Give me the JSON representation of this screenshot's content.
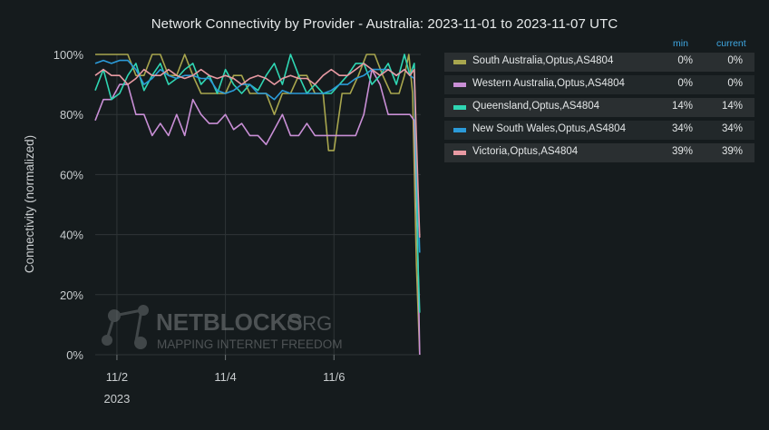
{
  "chart_data": {
    "type": "line",
    "title": "Network Connectivity by Provider - Australia: 2023-11-01 to 2023-11-07 UTC",
    "xlabel": "",
    "ylabel": "Connectivity (normalized)",
    "ylim": [
      0,
      100
    ],
    "xlim_days": [
      1.6,
      7.6
    ],
    "y_ticks": [
      {
        "value": 0,
        "label": "0%"
      },
      {
        "value": 20,
        "label": "20%"
      },
      {
        "value": 40,
        "label": "40%"
      },
      {
        "value": 60,
        "label": "60%"
      },
      {
        "value": 80,
        "label": "80%"
      },
      {
        "value": 100,
        "label": "100%"
      }
    ],
    "x_ticks": [
      {
        "value": 2,
        "label": "11/2"
      },
      {
        "value": 4,
        "label": "11/4"
      },
      {
        "value": 6,
        "label": "11/6"
      }
    ],
    "x_year_label": "2023",
    "grid": true,
    "legend_position": "right",
    "legend_columns": [
      "min",
      "current"
    ],
    "series": [
      {
        "name": "South Australia,Optus,AS4804",
        "color": "#a8a64e",
        "min": "0%",
        "current": "0%",
        "x": [
          1.6,
          1.75,
          1.9,
          2.05,
          2.2,
          2.35,
          2.5,
          2.65,
          2.8,
          2.95,
          3.1,
          3.25,
          3.4,
          3.55,
          3.7,
          3.85,
          4.0,
          4.15,
          4.3,
          4.45,
          4.6,
          4.75,
          4.9,
          5.05,
          5.2,
          5.35,
          5.5,
          5.65,
          5.8,
          5.9,
          6.0,
          6.15,
          6.3,
          6.45,
          6.6,
          6.75,
          6.9,
          7.05,
          7.2,
          7.3,
          7.38,
          7.45,
          7.52,
          7.58
        ],
        "y": [
          100,
          100,
          100,
          100,
          100,
          93,
          93,
          100,
          100,
          93,
          93,
          100,
          93,
          87,
          87,
          87,
          87,
          93,
          93,
          87,
          87,
          87,
          80,
          87,
          87,
          93,
          93,
          87,
          87,
          68,
          68,
          87,
          87,
          93,
          100,
          100,
          93,
          87,
          87,
          93,
          100,
          87,
          30,
          0
        ]
      },
      {
        "name": "Western Australia,Optus,AS4804",
        "color": "#c98fd6",
        "min": "0%",
        "current": "0%",
        "x": [
          1.6,
          1.75,
          1.9,
          2.05,
          2.2,
          2.35,
          2.5,
          2.65,
          2.8,
          2.95,
          3.1,
          3.25,
          3.4,
          3.55,
          3.7,
          3.85,
          4.0,
          4.15,
          4.3,
          4.45,
          4.6,
          4.75,
          4.9,
          5.05,
          5.2,
          5.35,
          5.5,
          5.65,
          5.8,
          5.95,
          6.1,
          6.25,
          6.4,
          6.55,
          6.7,
          6.85,
          7.0,
          7.15,
          7.3,
          7.4,
          7.48,
          7.55,
          7.58
        ],
        "y": [
          78,
          85,
          85,
          90,
          90,
          80,
          80,
          73,
          77,
          73,
          80,
          73,
          85,
          80,
          77,
          77,
          80,
          75,
          77,
          73,
          73,
          70,
          75,
          80,
          73,
          73,
          77,
          73,
          73,
          73,
          73,
          73,
          73,
          80,
          95,
          90,
          80,
          80,
          80,
          80,
          78,
          30,
          0
        ]
      },
      {
        "name": "Queensland,Optus,AS4804",
        "color": "#2fd6b3",
        "min": "14%",
        "current": "14%",
        "x": [
          1.6,
          1.75,
          1.9,
          2.05,
          2.2,
          2.35,
          2.5,
          2.65,
          2.8,
          2.95,
          3.1,
          3.25,
          3.4,
          3.55,
          3.7,
          3.85,
          4.0,
          4.15,
          4.3,
          4.45,
          4.6,
          4.75,
          4.9,
          5.05,
          5.2,
          5.35,
          5.5,
          5.65,
          5.8,
          5.95,
          6.1,
          6.25,
          6.4,
          6.55,
          6.7,
          6.85,
          7.0,
          7.15,
          7.3,
          7.4,
          7.48,
          7.55,
          7.58
        ],
        "y": [
          88,
          95,
          85,
          87,
          93,
          97,
          88,
          93,
          97,
          90,
          92,
          95,
          97,
          90,
          93,
          87,
          95,
          90,
          87,
          90,
          88,
          93,
          97,
          90,
          100,
          93,
          87,
          90,
          87,
          87,
          90,
          93,
          97,
          97,
          90,
          93,
          97,
          90,
          100,
          93,
          97,
          30,
          14
        ]
      },
      {
        "name": "New South Wales,Optus,AS4804",
        "color": "#2b9ad8",
        "min": "34%",
        "current": "34%",
        "x": [
          1.6,
          1.75,
          1.9,
          2.05,
          2.2,
          2.35,
          2.5,
          2.65,
          2.8,
          2.95,
          3.1,
          3.25,
          3.4,
          3.55,
          3.7,
          3.85,
          4.0,
          4.15,
          4.3,
          4.45,
          4.6,
          4.75,
          4.9,
          5.05,
          5.2,
          5.35,
          5.5,
          5.65,
          5.8,
          5.95,
          6.1,
          6.25,
          6.4,
          6.55,
          6.7,
          6.85,
          7.0,
          7.15,
          7.3,
          7.4,
          7.48,
          7.55,
          7.58
        ],
        "y": [
          97,
          98,
          97,
          98,
          98,
          95,
          90,
          92,
          95,
          93,
          92,
          93,
          93,
          92,
          92,
          88,
          87,
          88,
          90,
          90,
          87,
          87,
          85,
          88,
          87,
          87,
          87,
          87,
          87,
          88,
          90,
          90,
          92,
          93,
          95,
          95,
          95,
          93,
          95,
          93,
          92,
          50,
          34
        ]
      },
      {
        "name": "Victoria,Optus,AS4804",
        "color": "#e89aa3",
        "min": "39%",
        "current": "39%",
        "x": [
          1.6,
          1.75,
          1.9,
          2.05,
          2.2,
          2.35,
          2.5,
          2.65,
          2.8,
          2.95,
          3.1,
          3.25,
          3.4,
          3.55,
          3.7,
          3.85,
          4.0,
          4.15,
          4.3,
          4.45,
          4.6,
          4.75,
          4.9,
          5.05,
          5.2,
          5.35,
          5.5,
          5.65,
          5.8,
          5.95,
          6.1,
          6.25,
          6.4,
          6.55,
          6.7,
          6.85,
          7.0,
          7.15,
          7.3,
          7.4,
          7.48,
          7.55,
          7.58
        ],
        "y": [
          93,
          95,
          93,
          93,
          90,
          92,
          95,
          93,
          93,
          95,
          93,
          92,
          93,
          95,
          93,
          92,
          93,
          92,
          90,
          92,
          93,
          92,
          90,
          92,
          93,
          92,
          92,
          90,
          93,
          95,
          93,
          93,
          95,
          97,
          95,
          93,
          95,
          93,
          95,
          93,
          95,
          55,
          39
        ]
      }
    ]
  },
  "watermark": {
    "brand": "NETBLOCKS",
    "suffix": ".ORG",
    "tagline": "MAPPING INTERNET FREEDOM"
  }
}
